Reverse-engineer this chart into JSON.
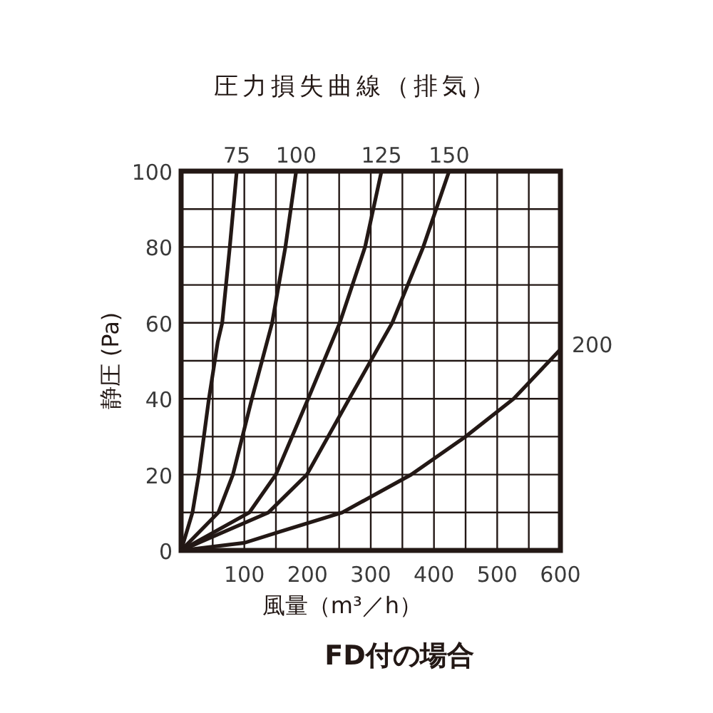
{
  "chart_data": {
    "type": "line",
    "title": "圧力損失曲線（排気）",
    "xlabel": "風量（m³／h）",
    "ylabel": "静圧 (Pa)",
    "annotations": [
      "FD付の場合"
    ],
    "xlim": [
      0,
      600
    ],
    "ylim": [
      0,
      100
    ],
    "xticks": [
      {
        "value": 0,
        "label": null
      },
      {
        "value": 50,
        "label": null
      },
      100,
      {
        "value": 150,
        "label": null
      },
      200,
      {
        "value": 250,
        "label": null
      },
      300,
      {
        "value": 350,
        "label": null
      },
      400,
      {
        "value": 450,
        "label": null
      },
      500,
      {
        "value": 550,
        "label": null
      },
      600
    ],
    "yticks": [
      0,
      {
        "value": 10,
        "label": null
      },
      20,
      {
        "value": 30,
        "label": null
      },
      40,
      {
        "value": 50,
        "label": null
      },
      60,
      {
        "value": 70,
        "label": null
      },
      80,
      {
        "value": 90,
        "label": null
      },
      100
    ],
    "grid": true,
    "line_style": "solid",
    "series": [
      {
        "name": "75",
        "color": "#231815",
        "x": [
          0,
          18,
          28,
          44,
          58,
          65,
          77,
          88
        ],
        "values": [
          0,
          10,
          20,
          40,
          55,
          60,
          80,
          100
        ]
      },
      {
        "name": "100",
        "color": "#231815",
        "x": [
          0,
          59,
          82,
          112,
          144,
          165,
          182
        ],
        "values": [
          0,
          10,
          20,
          40,
          60,
          80,
          100
        ]
      },
      {
        "name": "125",
        "color": "#231815",
        "x": [
          0,
          108,
          150,
          201,
          251,
          291,
          317
        ],
        "values": [
          0,
          10,
          20,
          40,
          60,
          80,
          100
        ]
      },
      {
        "name": "150",
        "color": "#231815",
        "x": [
          0,
          138,
          199,
          266,
          334,
          383,
          424
        ],
        "values": [
          0,
          10,
          20,
          40,
          60,
          80,
          100
        ]
      },
      {
        "name": "200",
        "color": "#231815",
        "x": [
          0,
          100,
          157,
          255,
          364,
          450,
          526,
          600
        ],
        "values": [
          0,
          2,
          5,
          10,
          20,
          30,
          40,
          53
        ]
      }
    ]
  }
}
